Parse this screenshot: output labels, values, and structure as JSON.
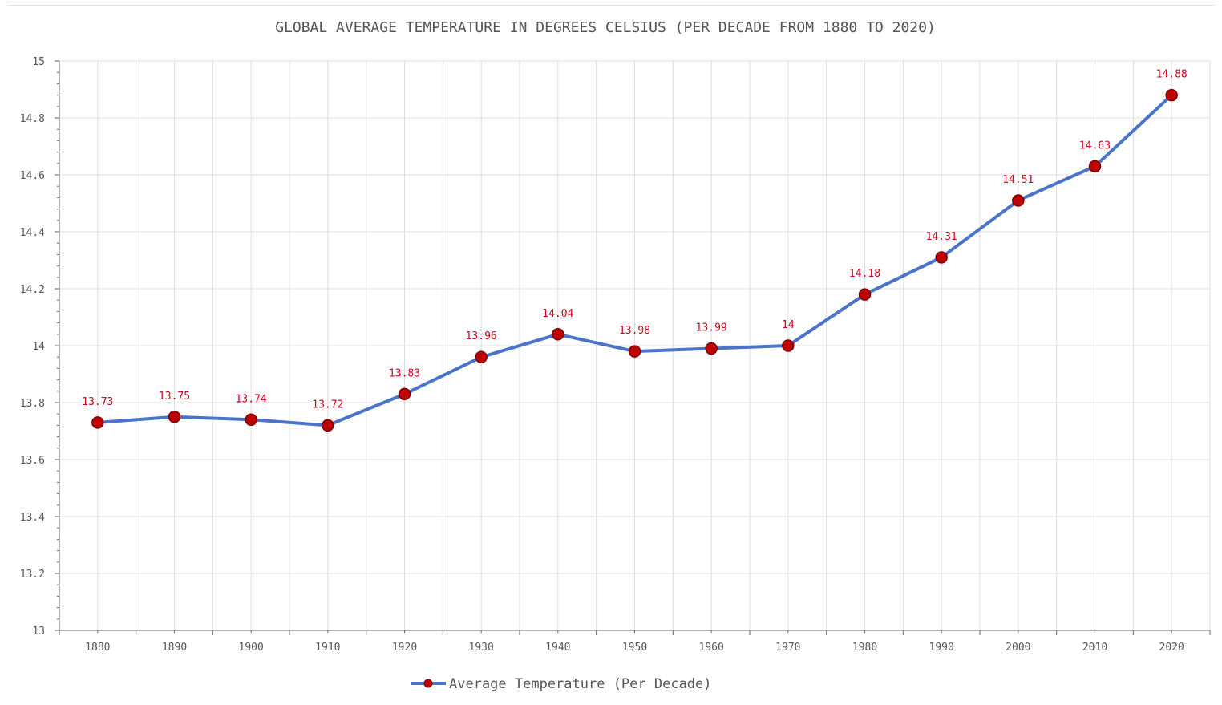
{
  "chart_data": {
    "type": "line",
    "title": "GLOBAL AVERAGE TEMPERATURE IN DEGREES CELSIUS (PER DECADE FROM 1880 TO 2020)",
    "xlabel": "",
    "ylabel": "",
    "categories": [
      "1880",
      "1890",
      "1900",
      "1910",
      "1920",
      "1930",
      "1940",
      "1950",
      "1960",
      "1970",
      "1980",
      "1990",
      "2000",
      "2010",
      "2020"
    ],
    "series": [
      {
        "name": "Average Temperature (Per Decade)",
        "values": [
          13.73,
          13.75,
          13.74,
          13.72,
          13.83,
          13.96,
          14.04,
          13.98,
          13.99,
          14,
          14.18,
          14.31,
          14.51,
          14.63,
          14.88
        ]
      }
    ],
    "data_labels": [
      "13.73",
      "13.75",
      "13.74",
      "13.72",
      "13.83",
      "13.96",
      "14.04",
      "13.98",
      "13.99",
      "14",
      "14.18",
      "14.31",
      "14.51",
      "14.63",
      "14.88"
    ],
    "y_ticks": [
      "13",
      "13.2",
      "13.4",
      "13.6",
      "13.8",
      "14",
      "14.2",
      "14.4",
      "14.6",
      "14.8",
      "15"
    ],
    "ylim": [
      13,
      15
    ],
    "grid": true,
    "legend_position": "bottom",
    "colors": {
      "line": "#4a74c9",
      "marker_fill": "#c00000",
      "marker_stroke": "#7a0000",
      "data_label": "#d0021b",
      "grid": "#dddddd",
      "axis": "#666666",
      "text": "#555555"
    }
  }
}
